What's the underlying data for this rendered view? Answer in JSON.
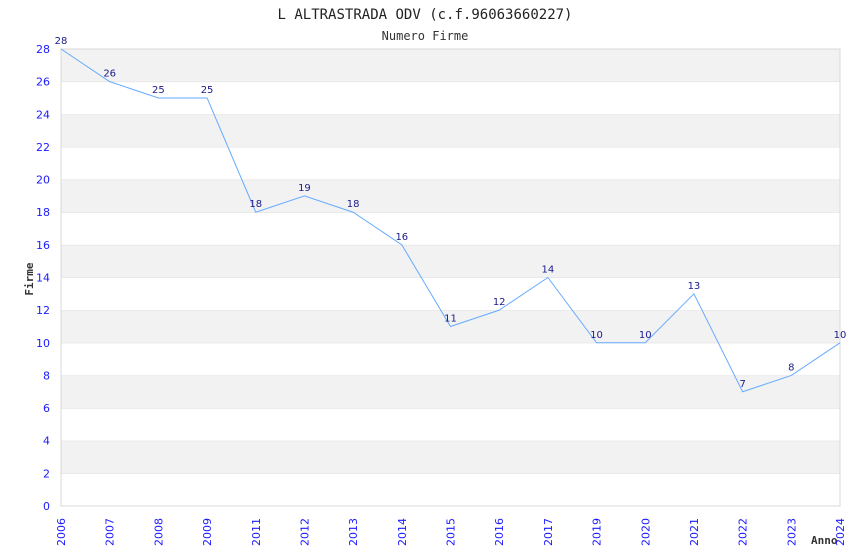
{
  "chart_data": {
    "type": "line",
    "title": "L ALTRASTRADA ODV (c.f.96063660227)",
    "subtitle": "Numero Firme",
    "xlabel": "Anno",
    "ylabel": "Firme",
    "categories": [
      "2006",
      "2007",
      "2008",
      "2009",
      "2011",
      "2012",
      "2013",
      "2014",
      "2015",
      "2016",
      "2017",
      "2019",
      "2020",
      "2021",
      "2022",
      "2023",
      "2024"
    ],
    "values": [
      28,
      26,
      25,
      25,
      18,
      19,
      18,
      16,
      11,
      12,
      14,
      10,
      10,
      13,
      7,
      8,
      10
    ],
    "ylim": [
      0,
      28
    ],
    "yticks": [
      0,
      2,
      4,
      6,
      8,
      10,
      12,
      14,
      16,
      18,
      20,
      22,
      24,
      26,
      28
    ],
    "grid": true,
    "line_color": "#66aaff",
    "band_color": "#f2f2f2"
  }
}
